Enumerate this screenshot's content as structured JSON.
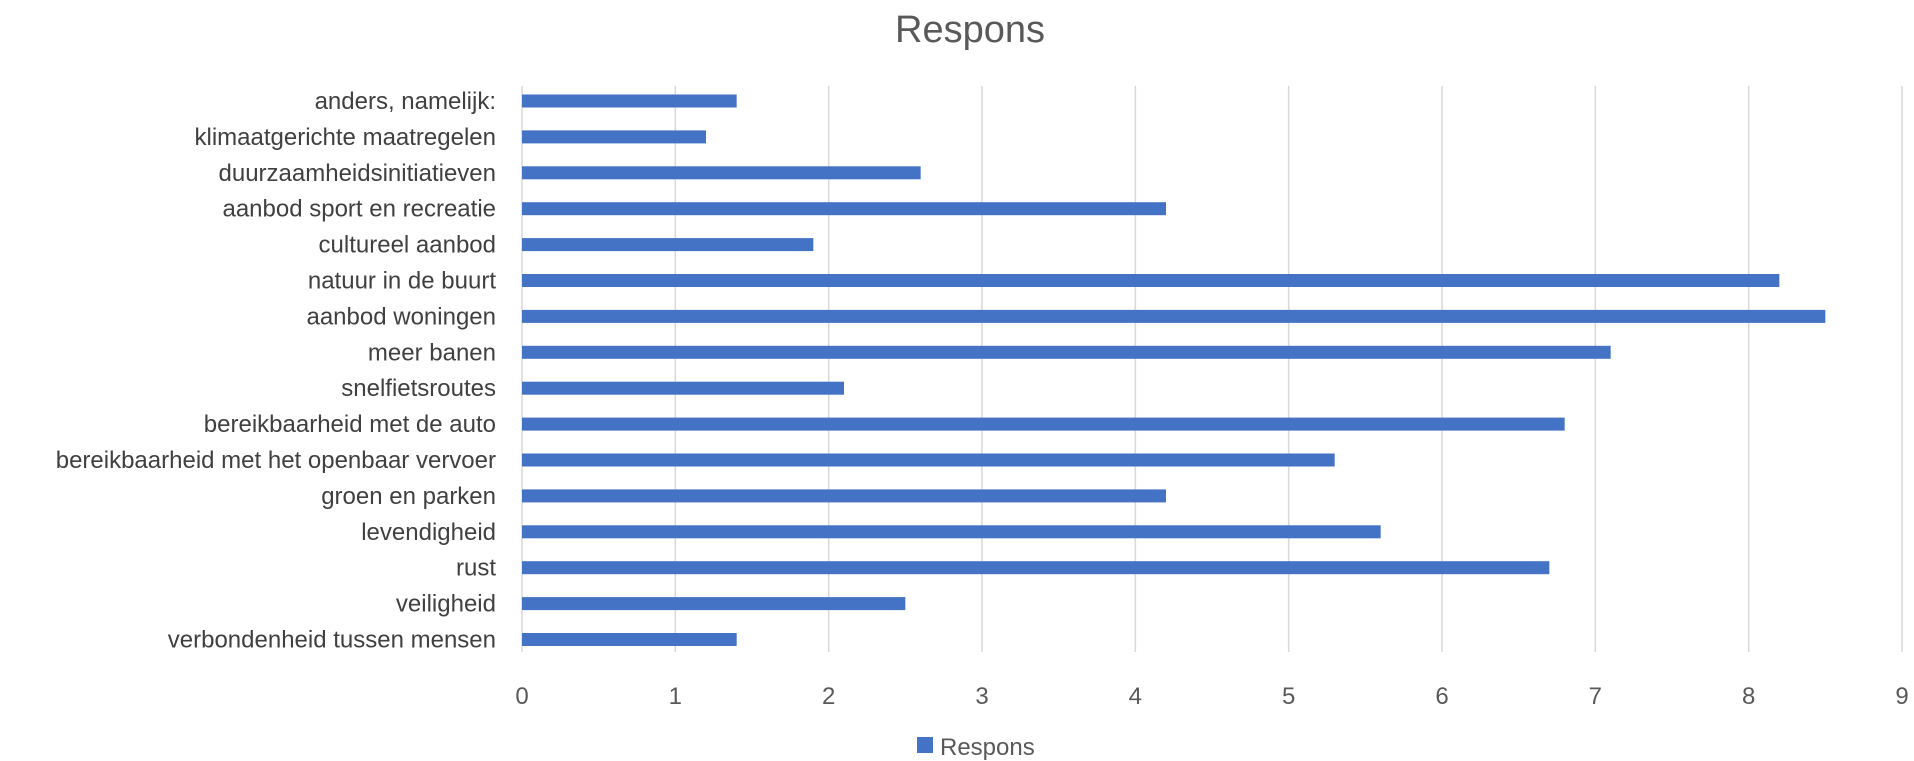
{
  "chart_data": {
    "type": "bar",
    "orientation": "horizontal",
    "title": "Respons",
    "categories": [
      "anders, namelijk:",
      "klimaatgerichte maatregelen",
      "duurzaamheidsinitiatieven",
      "aanbod sport en recreatie",
      "cultureel aanbod",
      "natuur in de buurt",
      "aanbod woningen",
      "meer banen",
      "snelfietsroutes",
      "bereikbaarheid met de auto",
      "bereikbaarheid met het openbaar vervoer",
      "groen en parken",
      "levendigheid",
      "rust",
      "veiligheid",
      "verbondenheid tussen mensen"
    ],
    "series": [
      {
        "name": "Respons",
        "values": [
          1.4,
          1.2,
          2.6,
          4.2,
          1.9,
          8.2,
          8.5,
          7.1,
          2.1,
          6.8,
          5.3,
          4.2,
          5.6,
          6.7,
          2.5,
          1.4
        ]
      }
    ],
    "xlim": [
      0,
      9
    ],
    "xticks": [
      "0",
      "1",
      "2",
      "3",
      "4",
      "5",
      "6",
      "7",
      "8",
      "9"
    ],
    "grid": true,
    "legend_position": "bottom",
    "colors": {
      "bar": "#4472C4",
      "grid": "#D9D9D9",
      "text": "#595959"
    }
  }
}
